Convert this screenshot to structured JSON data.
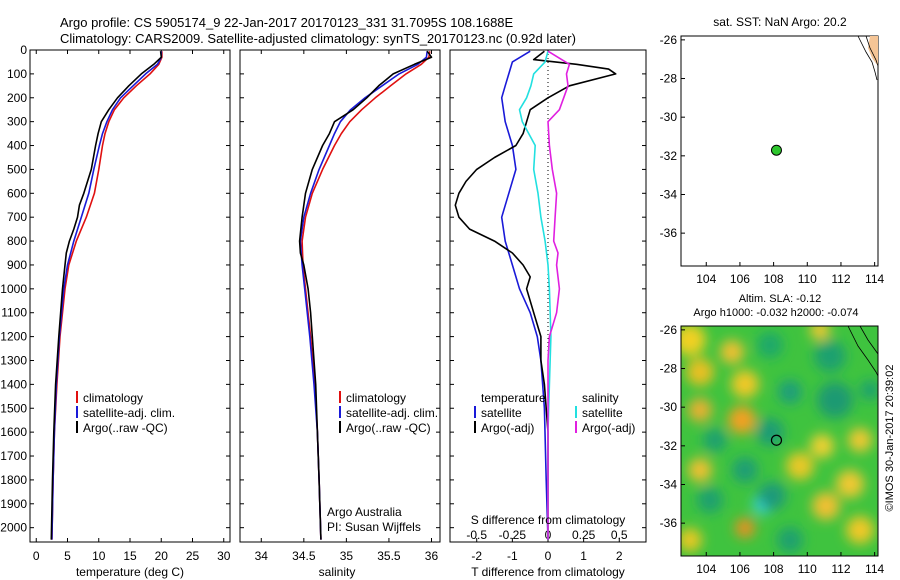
{
  "header": {
    "line1": "Argo profile: CS 5905174_9 22-Jan-2017 20170123_331 31.7095S 108.1688E",
    "line2": "Climatology: CARS2009. Satellite-adjusted climatology: synTS_20170123.nc (0.92d later)"
  },
  "colors": {
    "climatology": "#e01010",
    "satellite": "#1a1ad8",
    "argo": "#000000",
    "sat_salinity": "#22e0e0",
    "argo_salinity_adj": "#e020e0",
    "float_marker": "#2ec62e",
    "land": "#f5c596"
  },
  "depth_ticks": [
    0,
    100,
    200,
    300,
    400,
    500,
    600,
    700,
    800,
    900,
    1000,
    1100,
    1200,
    1300,
    1400,
    1500,
    1600,
    1700,
    1800,
    1900,
    2000
  ],
  "legend": {
    "climatology": "climatology",
    "satellite": "satellite-adj. clim.",
    "argo": "Argo(..raw -QC)",
    "diff_temperature": "temperature",
    "diff_salinity": "salinity",
    "diff_satellite": "satellite",
    "diff_argo": "Argo(-adj)",
    "argo_australia": "Argo Australia",
    "pi": "PI: Susan Wijffels"
  },
  "sst_map": {
    "title": "sat. SST: NaN Argo: 20.2"
  },
  "sla_map": {
    "title1": "Altim. SLA: -0.12",
    "title2": "Argo h1000: -0.032 h2000: -0.074"
  },
  "credit": "©IMOS 30-Jan-2017 20:39:02",
  "chart_data": [
    {
      "type": "line",
      "name": "temperature-profile",
      "xlabel": "temperature (deg C)",
      "ylabel": "",
      "xlim": [
        -1,
        31
      ],
      "ylim": [
        2060,
        0
      ],
      "xticks": [
        0,
        5,
        10,
        15,
        20,
        25,
        30
      ],
      "series": [
        {
          "name": "climatology",
          "depth": [
            5,
            30,
            60,
            100,
            150,
            200,
            250,
            300,
            350,
            400,
            500,
            600,
            700,
            800,
            900,
            1000,
            1200,
            1400,
            1600,
            1800,
            2050
          ],
          "values": [
            20.1,
            20.1,
            19.6,
            18.2,
            16.0,
            14.0,
            12.5,
            11.6,
            11.0,
            10.6,
            10.0,
            9.3,
            8.0,
            6.4,
            5.2,
            4.6,
            3.8,
            3.3,
            2.9,
            2.7,
            2.5
          ]
        },
        {
          "name": "satellite-adj. clim.",
          "depth": [
            5,
            30,
            60,
            100,
            150,
            200,
            250,
            300,
            350,
            400,
            500,
            600,
            700,
            800,
            900,
            1000,
            1200,
            1400,
            1600,
            1800,
            2050
          ],
          "values": [
            20.0,
            20.0,
            19.4,
            17.5,
            15.5,
            13.5,
            12.2,
            11.3,
            10.6,
            10.1,
            9.2,
            8.4,
            7.2,
            6.0,
            5.0,
            4.4,
            3.7,
            3.2,
            2.9,
            2.7,
            2.5
          ]
        },
        {
          "name": "Argo(..raw -QC)",
          "depth": [
            5,
            30,
            60,
            100,
            150,
            200,
            250,
            300,
            350,
            400,
            500,
            600,
            650,
            700,
            750,
            800,
            850,
            900,
            1000,
            1200,
            1400,
            1600,
            1800,
            2050
          ],
          "values": [
            19.9,
            20.0,
            18.8,
            16.8,
            14.8,
            13.0,
            11.6,
            10.4,
            9.9,
            9.5,
            8.8,
            7.6,
            6.9,
            6.6,
            6.0,
            5.3,
            4.8,
            4.6,
            4.2,
            3.6,
            3.1,
            2.8,
            2.6,
            2.4
          ]
        }
      ]
    },
    {
      "type": "line",
      "name": "salinity-profile",
      "xlabel": "salinity",
      "ylabel": "",
      "xlim": [
        33.75,
        36.1
      ],
      "ylim": [
        2060,
        0
      ],
      "xticks": [
        34,
        34.5,
        35,
        35.5,
        36
      ],
      "series": [
        {
          "name": "climatology",
          "depth": [
            5,
            30,
            60,
            100,
            150,
            200,
            250,
            300,
            350,
            400,
            500,
            600,
            700,
            800,
            900,
            1000,
            1200,
            1400,
            1600,
            1800,
            2050
          ],
          "values": [
            35.98,
            35.97,
            35.88,
            35.7,
            35.52,
            35.34,
            35.18,
            35.04,
            34.94,
            34.86,
            34.72,
            34.6,
            34.52,
            34.48,
            34.49,
            34.52,
            34.58,
            34.63,
            34.66,
            34.68,
            34.7
          ]
        },
        {
          "name": "satellite-adj. clim.",
          "depth": [
            5,
            30,
            60,
            100,
            150,
            200,
            250,
            300,
            350,
            400,
            500,
            600,
            700,
            800,
            900,
            1000,
            1200,
            1400,
            1600,
            1800,
            2050
          ],
          "values": [
            35.95,
            35.94,
            35.84,
            35.62,
            35.42,
            35.22,
            35.05,
            34.93,
            34.86,
            34.8,
            34.68,
            34.58,
            34.5,
            34.46,
            34.48,
            34.51,
            34.57,
            34.62,
            34.66,
            34.68,
            34.7
          ]
        },
        {
          "name": "Argo(..raw -QC)",
          "depth": [
            5,
            30,
            60,
            100,
            150,
            200,
            250,
            300,
            350,
            400,
            500,
            600,
            700,
            800,
            850,
            900,
            1000,
            1100,
            1200,
            1400,
            1600,
            1800,
            2050
          ],
          "values": [
            35.95,
            36.0,
            35.8,
            35.55,
            35.38,
            35.24,
            35.08,
            34.86,
            34.8,
            34.72,
            34.6,
            34.52,
            34.48,
            34.45,
            34.46,
            34.5,
            34.55,
            34.58,
            34.6,
            34.64,
            34.66,
            34.68,
            34.7
          ]
        }
      ]
    },
    {
      "type": "line",
      "name": "difference-profile",
      "xlabel": "T difference from climatology",
      "x2label": "S difference from climatology",
      "xlim": [
        -2.75,
        2.75
      ],
      "ylim": [
        2060,
        0
      ],
      "xticks": [
        -2,
        -1,
        0,
        1,
        2
      ],
      "x2ticks": [
        -0.5,
        -0.25,
        0,
        0.25,
        0.5
      ],
      "x2tick_labels": [
        "-0.5",
        "-0.25",
        "0",
        "0.25",
        "0.5"
      ],
      "series": [
        {
          "name": "temperature satellite",
          "depth": [
            5,
            50,
            100,
            150,
            200,
            300,
            400,
            500,
            600,
            700,
            800,
            900,
            1000,
            1100,
            1200,
            1300,
            1500,
            1800,
            2050
          ],
          "values": [
            -0.5,
            -1.0,
            -1.1,
            -1.2,
            -1.3,
            -1.2,
            -1.0,
            -0.9,
            -1.1,
            -1.3,
            -1.2,
            -1.0,
            -0.8,
            -0.5,
            -0.3,
            -0.2,
            -0.1,
            -0.05,
            0
          ]
        },
        {
          "name": "temperature Argo(-adj)",
          "depth": [
            5,
            40,
            60,
            80,
            100,
            150,
            200,
            250,
            300,
            350,
            400,
            450,
            500,
            550,
            600,
            650,
            700,
            750,
            800,
            850,
            900,
            950,
            1000,
            1100,
            1200,
            1300,
            1400,
            1600,
            1800,
            2050
          ],
          "values": [
            -0.1,
            -0.4,
            0.8,
            1.7,
            1.9,
            0.6,
            0.0,
            -0.5,
            -0.6,
            -0.7,
            -0.9,
            -1.5,
            -2.0,
            -2.3,
            -2.5,
            -2.6,
            -2.5,
            -2.2,
            -1.5,
            -1.0,
            -0.7,
            -0.5,
            -0.6,
            -0.4,
            -0.2,
            -0.2,
            -0.1,
            0,
            0,
            0
          ]
        },
        {
          "name": "salinity satellite",
          "depth": [
            5,
            50,
            100,
            150,
            200,
            250,
            300,
            400,
            500,
            600,
            700,
            800,
            900,
            1000,
            1200,
            1400,
            1600,
            1800,
            2050
          ],
          "values": [
            0.0,
            -0.02,
            -0.1,
            -0.12,
            -0.15,
            -0.2,
            -0.18,
            -0.09,
            -0.1,
            -0.07,
            -0.05,
            -0.02,
            0.0,
            0.01,
            0.02,
            0.01,
            0.0,
            0.0,
            0.0
          ]
        },
        {
          "name": "salinity Argo(-adj)",
          "depth": [
            5,
            60,
            100,
            150,
            200,
            250,
            300,
            400,
            500,
            600,
            700,
            800,
            850,
            900,
            1000,
            1050,
            1100,
            1200,
            1300,
            1400,
            1600,
            1800,
            2050
          ],
          "values": [
            0.0,
            0.15,
            0.13,
            0.14,
            0.11,
            0.08,
            0.0,
            0.01,
            0.03,
            0.06,
            0.05,
            0.04,
            0.07,
            0.06,
            0.08,
            0.07,
            0.06,
            0.01,
            0.0,
            0.0,
            0.0,
            0.0,
            0.0
          ]
        }
      ]
    },
    {
      "type": "scatter",
      "name": "sst-map",
      "xlim": [
        102.5,
        114.2
      ],
      "ylim": [
        -37.7,
        -25.8
      ],
      "xticks": [
        104,
        106,
        108,
        110,
        112,
        114
      ],
      "yticks": [
        -26,
        -28,
        -30,
        -32,
        -34,
        -36
      ],
      "series": [
        {
          "name": "float",
          "x": [
            108.17
          ],
          "y": [
            -31.71
          ]
        }
      ]
    },
    {
      "type": "heatmap",
      "name": "sla-map",
      "xlim": [
        102.5,
        114.2
      ],
      "ylim": [
        -37.7,
        -25.8
      ],
      "xticks": [
        104,
        106,
        108,
        110,
        112,
        114
      ],
      "yticks": [
        -26,
        -28,
        -30,
        -32,
        -34,
        -36
      ],
      "float": {
        "x": 108.17,
        "y": -31.71
      }
    }
  ]
}
